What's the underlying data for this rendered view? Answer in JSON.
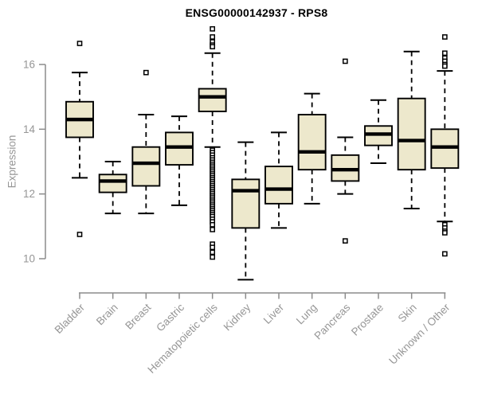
{
  "chart_data": {
    "type": "boxplot",
    "title": "ENSG00000142937 - RPS8",
    "ylabel": "Expression",
    "xlabel": "",
    "ylim": [
      10,
      16
    ],
    "yticks": [
      10,
      12,
      14,
      16
    ],
    "grid": false,
    "legend": "none",
    "categories": [
      "Bladder",
      "Brain",
      "Breast",
      "Gastric",
      "Hematopoietic cells",
      "Kidney",
      "Liver",
      "Lung",
      "Pancreas",
      "Prostate",
      "Skin",
      "Unknown / Other"
    ],
    "boxes": [
      {
        "label": "Bladder",
        "whisker_low": 12.5,
        "q1": 13.75,
        "median": 14.3,
        "q3": 14.85,
        "whisker_high": 15.75,
        "outliers": [
          16.65,
          10.75
        ]
      },
      {
        "label": "Brain",
        "whisker_low": 11.4,
        "q1": 12.05,
        "median": 12.4,
        "q3": 12.6,
        "whisker_high": 13.0,
        "outliers": []
      },
      {
        "label": "Breast",
        "whisker_low": 11.4,
        "q1": 12.25,
        "median": 12.95,
        "q3": 13.45,
        "whisker_high": 14.45,
        "outliers": [
          15.75
        ]
      },
      {
        "label": "Gastric",
        "whisker_low": 11.65,
        "q1": 12.9,
        "median": 13.45,
        "q3": 13.9,
        "whisker_high": 14.4,
        "outliers": []
      },
      {
        "label": "Hematopoietic cells",
        "whisker_low": 13.45,
        "q1": 14.55,
        "median": 15.0,
        "q3": 15.25,
        "whisker_high": 16.35,
        "outliers": [
          17.1,
          16.85,
          16.7,
          16.6,
          16.55,
          13.35,
          13.28,
          13.2,
          13.12,
          13.05,
          12.98,
          12.92,
          12.86,
          12.8,
          12.74,
          12.68,
          12.62,
          12.56,
          12.5,
          12.44,
          12.38,
          12.32,
          12.26,
          12.2,
          12.14,
          12.08,
          12.02,
          11.96,
          11.9,
          11.84,
          11.78,
          11.72,
          11.66,
          11.6,
          11.54,
          11.48,
          11.42,
          11.36,
          11.3,
          11.22,
          11.14,
          11.05,
          10.9,
          10.45,
          10.35,
          10.2,
          10.05
        ]
      },
      {
        "label": "Kidney",
        "whisker_low": 9.35,
        "q1": 10.95,
        "median": 12.1,
        "q3": 12.45,
        "whisker_high": 13.6,
        "outliers": []
      },
      {
        "label": "Liver",
        "whisker_low": 10.95,
        "q1": 11.7,
        "median": 12.15,
        "q3": 12.85,
        "whisker_high": 13.9,
        "outliers": []
      },
      {
        "label": "Lung",
        "whisker_low": 11.7,
        "q1": 12.75,
        "median": 13.3,
        "q3": 14.45,
        "whisker_high": 15.1,
        "outliers": []
      },
      {
        "label": "Pancreas",
        "whisker_low": 12.0,
        "q1": 12.4,
        "median": 12.75,
        "q3": 13.2,
        "whisker_high": 13.75,
        "outliers": [
          16.1,
          10.55
        ]
      },
      {
        "label": "Prostate",
        "whisker_low": 12.95,
        "q1": 13.5,
        "median": 13.85,
        "q3": 14.1,
        "whisker_high": 14.9,
        "outliers": []
      },
      {
        "label": "Skin",
        "whisker_low": 11.55,
        "q1": 12.75,
        "median": 13.65,
        "q3": 14.95,
        "whisker_high": 16.4,
        "outliers": []
      },
      {
        "label": "Unknown / Other",
        "whisker_low": 11.15,
        "q1": 12.8,
        "median": 13.45,
        "q3": 14.0,
        "whisker_high": 15.8,
        "outliers": [
          16.85,
          16.35,
          16.2,
          16.1,
          16.0,
          15.95,
          11.05,
          10.95,
          10.85,
          10.8,
          10.15
        ]
      }
    ]
  },
  "colors": {
    "background": "#FFFFFF",
    "box_fill": "#EDE8CC",
    "box_stroke": "#000000",
    "median": "#000000",
    "whisker": "#000000",
    "outlier": "#000000",
    "axis": "#8C8C8C",
    "tick_text": "#969696",
    "title_text": "#000000"
  }
}
